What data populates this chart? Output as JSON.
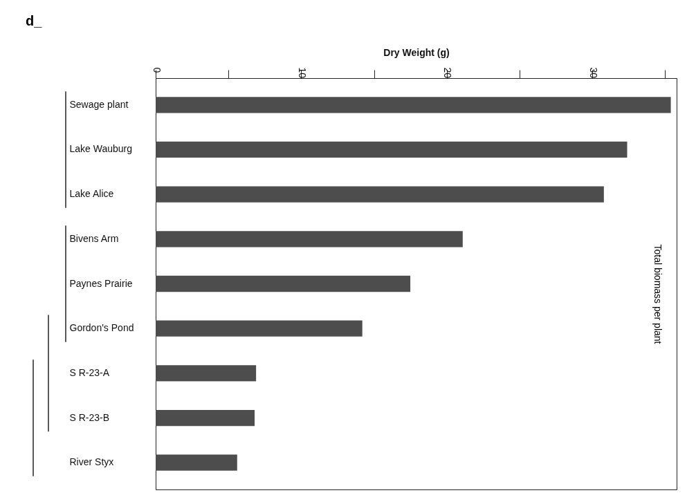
{
  "chart_data": {
    "type": "bar",
    "orientation": "horizontal",
    "title": "d_",
    "xlabel": "Dry Weight (g)",
    "categories": [
      "Sewage plant",
      "Lake Wauburg",
      "Lake Alice",
      "Bivens Arm",
      "Paynes Prairie",
      "Gordon's Pond",
      "S R-23-A",
      "S R-23-B",
      "River Styx"
    ],
    "values": [
      35.4,
      32.4,
      30.8,
      21.1,
      17.5,
      14.2,
      6.9,
      6.8,
      5.6
    ],
    "color": "#4d4d4d",
    "xlim": [
      0,
      35.8
    ],
    "xticks": [
      0,
      {
        "value": 5,
        "label": null
      },
      10,
      {
        "value": 15,
        "label": null
      },
      20,
      {
        "value": 25,
        "label": null
      },
      30,
      {
        "value": 35,
        "label": null
      }
    ],
    "annotations": [
      "Total biomass per plant"
    ],
    "grid": false
  }
}
